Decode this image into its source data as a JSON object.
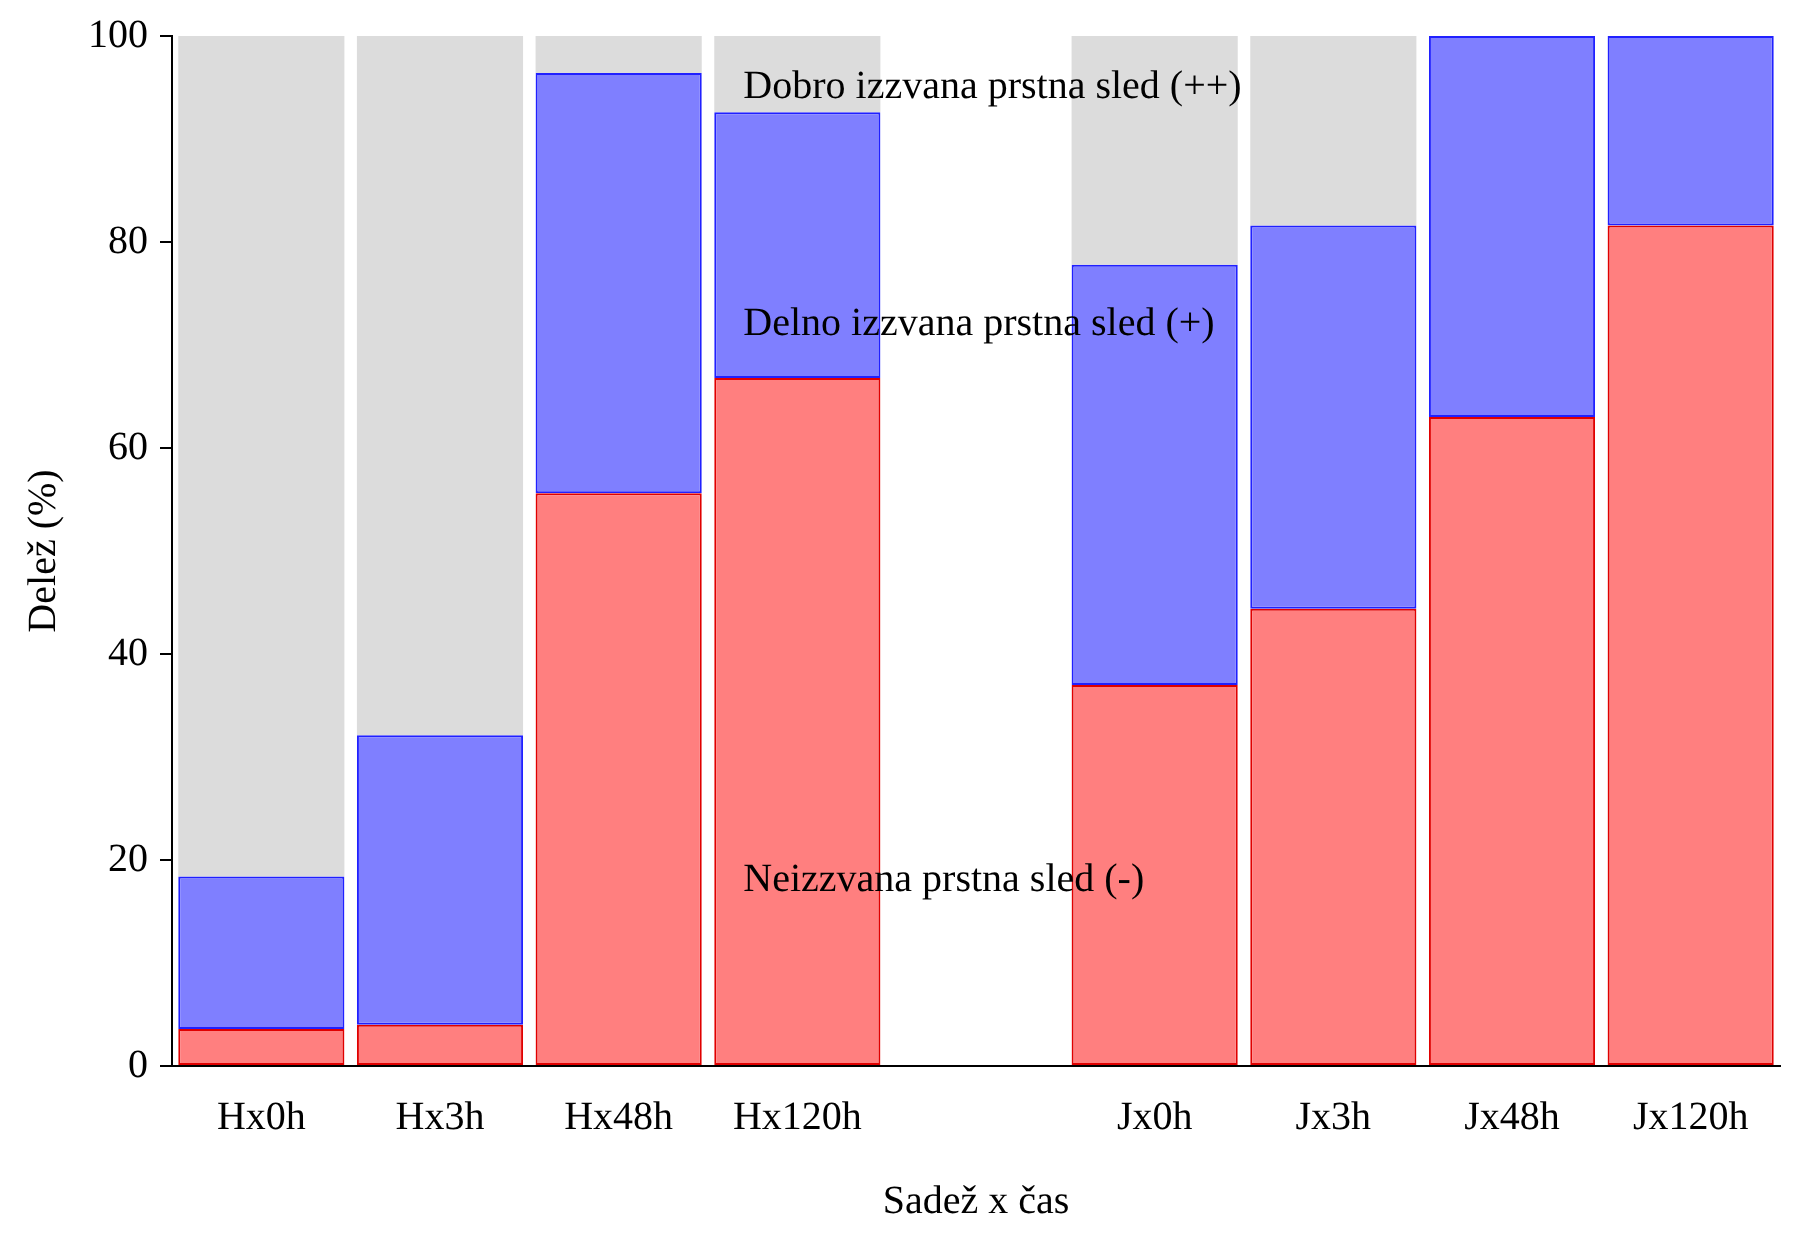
{
  "chart_data": {
    "type": "bar",
    "stacked": true,
    "xlabel": "Sadež x čas",
    "ylabel": "Delež (%)",
    "categories": [
      "Hx0h",
      "Hx3h",
      "Hx48h",
      "Hx120h",
      null,
      "Jx0h",
      "Jx3h",
      "Jx48h",
      "Jx120h"
    ],
    "series": [
      {
        "name": "Neizzvana prstna sled (-)",
        "color": "#ff7f7f",
        "values": [
          3.6,
          4.0,
          55.6,
          66.8,
          null,
          37.0,
          44.4,
          63.0,
          81.6
        ]
      },
      {
        "name": "Delno izzvana prstna sled (+)",
        "color": "#7f7fff",
        "values": [
          14.8,
          28.1,
          40.8,
          25.8,
          null,
          40.8,
          37.2,
          37.0,
          18.4
        ]
      },
      {
        "name": "Dobro izzvana prstna sled (++)",
        "color": "#dcdcdc",
        "values": [
          81.6,
          67.9,
          3.6,
          7.4,
          null,
          22.2,
          18.4,
          0,
          0
        ]
      }
    ],
    "ylim": [
      0,
      100
    ],
    "yticks": [
      0,
      20,
      40,
      60,
      80,
      100
    ],
    "grid": false,
    "legend": false
  }
}
